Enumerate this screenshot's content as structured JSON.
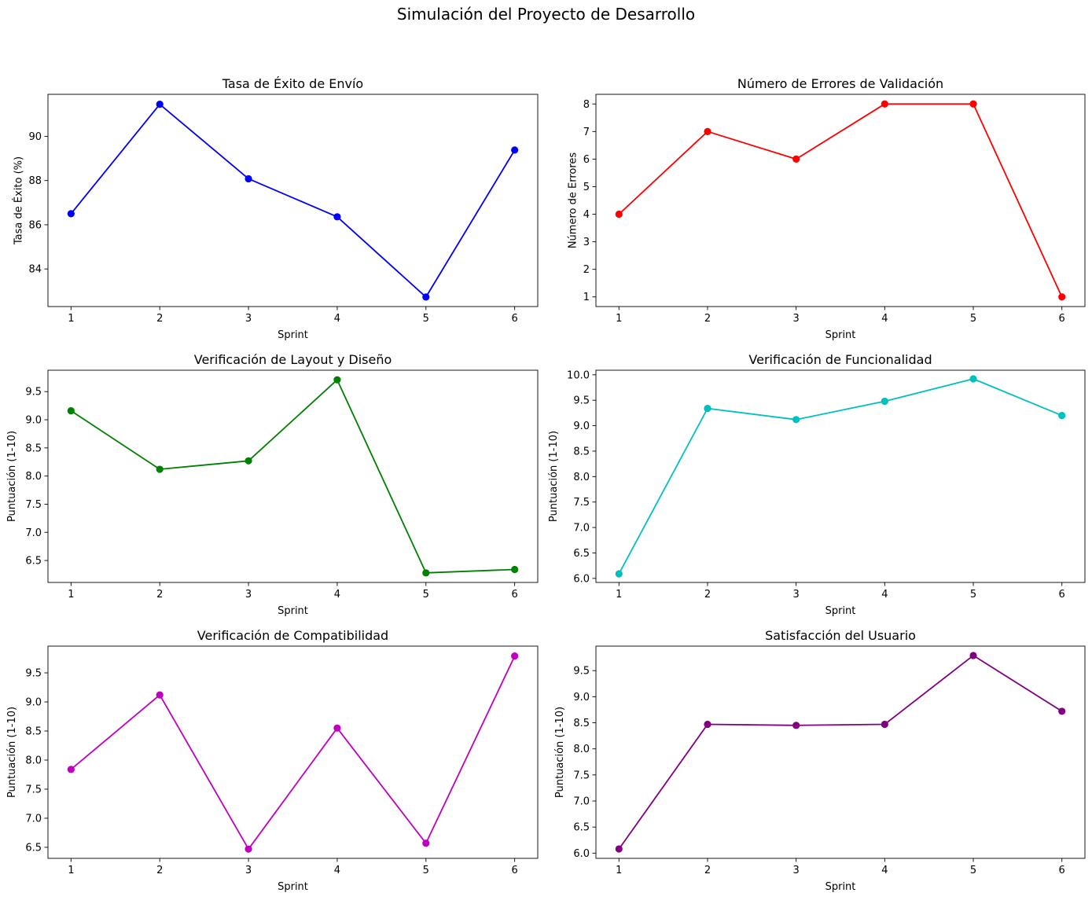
{
  "figure_title": "Simulación del Proyecto de Desarrollo",
  "chart_data": [
    {
      "type": "line",
      "title": "Tasa de Éxito de Envío",
      "xlabel": "Sprint",
      "ylabel": "Tasa de Éxito (%)",
      "x": [
        1,
        2,
        3,
        4,
        5,
        6
      ],
      "values": [
        86.5,
        91.45,
        88.08,
        86.36,
        82.73,
        89.38
      ],
      "color": "#0000ff",
      "xlim": [
        0.74,
        6.26
      ],
      "ylim": [
        82.3,
        91.9
      ],
      "yticks": [
        84,
        86,
        88,
        90
      ],
      "ytick_labels": [
        "84",
        "86",
        "88",
        "90"
      ],
      "xticks": [
        1,
        2,
        3,
        4,
        5,
        6
      ],
      "xtick_labels": [
        "1",
        "2",
        "3",
        "4",
        "5",
        "6"
      ],
      "grid": false,
      "marker": "circle"
    },
    {
      "type": "line",
      "title": "Número de Errores de Validación",
      "xlabel": "Sprint",
      "ylabel": "Número de Errores",
      "x": [
        1,
        2,
        3,
        4,
        5,
        6
      ],
      "values": [
        4,
        7,
        6,
        8,
        8,
        1
      ],
      "color": "#ff0000",
      "xlim": [
        0.74,
        6.26
      ],
      "ylim": [
        0.65,
        8.35
      ],
      "yticks": [
        1,
        2,
        3,
        4,
        5,
        6,
        7,
        8
      ],
      "ytick_labels": [
        "1",
        "2",
        "3",
        "4",
        "5",
        "6",
        "7",
        "8"
      ],
      "xticks": [
        1,
        2,
        3,
        4,
        5,
        6
      ],
      "xtick_labels": [
        "1",
        "2",
        "3",
        "4",
        "5",
        "6"
      ],
      "grid": false,
      "marker": "circle"
    },
    {
      "type": "line",
      "title": "Verificación de Layout y Diseño",
      "xlabel": "Sprint",
      "ylabel": "Puntuación (1-10)",
      "x": [
        1,
        2,
        3,
        4,
        5,
        6
      ],
      "values": [
        9.16,
        8.12,
        8.27,
        9.71,
        6.28,
        6.34
      ],
      "color": "#008000",
      "xlim": [
        0.74,
        6.26
      ],
      "ylim": [
        6.11,
        9.88
      ],
      "yticks": [
        6.5,
        7.0,
        7.5,
        8.0,
        8.5,
        9.0,
        9.5
      ],
      "ytick_labels": [
        "6.5",
        "7.0",
        "7.5",
        "8.0",
        "8.5",
        "9.0",
        "9.5"
      ],
      "xticks": [
        1,
        2,
        3,
        4,
        5,
        6
      ],
      "xtick_labels": [
        "1",
        "2",
        "3",
        "4",
        "5",
        "6"
      ],
      "grid": false,
      "marker": "circle"
    },
    {
      "type": "line",
      "title": "Verificación de Funcionalidad",
      "xlabel": "Sprint",
      "ylabel": "Puntuación (1-10)",
      "x": [
        1,
        2,
        3,
        4,
        5,
        6
      ],
      "values": [
        6.09,
        9.34,
        9.12,
        9.48,
        9.92,
        9.2
      ],
      "color": "#00bfbf",
      "xlim": [
        0.74,
        6.26
      ],
      "ylim": [
        5.92,
        10.09
      ],
      "yticks": [
        6.0,
        6.5,
        7.0,
        7.5,
        8.0,
        8.5,
        9.0,
        9.5,
        10.0
      ],
      "ytick_labels": [
        "6.0",
        "6.5",
        "7.0",
        "7.5",
        "8.0",
        "8.5",
        "9.0",
        "9.5",
        "10.0"
      ],
      "xticks": [
        1,
        2,
        3,
        4,
        5,
        6
      ],
      "xtick_labels": [
        "1",
        "2",
        "3",
        "4",
        "5",
        "6"
      ],
      "grid": false,
      "marker": "circle"
    },
    {
      "type": "line",
      "title": "Verificación de Compatibilidad",
      "xlabel": "Sprint",
      "ylabel": "Puntuación (1-10)",
      "x": [
        1,
        2,
        3,
        4,
        5,
        6
      ],
      "values": [
        7.84,
        9.12,
        6.47,
        8.55,
        6.57,
        9.79
      ],
      "color": "#bf00bf",
      "xlim": [
        0.74,
        6.26
      ],
      "ylim": [
        6.31,
        9.96
      ],
      "yticks": [
        6.5,
        7.0,
        7.5,
        8.0,
        8.5,
        9.0,
        9.5
      ],
      "ytick_labels": [
        "6.5",
        "7.0",
        "7.5",
        "8.0",
        "8.5",
        "9.0",
        "9.5"
      ],
      "xticks": [
        1,
        2,
        3,
        4,
        5,
        6
      ],
      "xtick_labels": [
        "1",
        "2",
        "3",
        "4",
        "5",
        "6"
      ],
      "grid": false,
      "marker": "circle"
    },
    {
      "type": "line",
      "title": "Satisfacción del Usuario",
      "xlabel": "Sprint",
      "ylabel": "Puntuación (1-10)",
      "x": [
        1,
        2,
        3,
        4,
        5,
        6
      ],
      "values": [
        6.08,
        8.47,
        8.45,
        8.47,
        9.79,
        8.72
      ],
      "color": "#800080",
      "xlim": [
        0.74,
        6.26
      ],
      "ylim": [
        5.9,
        9.97
      ],
      "yticks": [
        6.0,
        6.5,
        7.0,
        7.5,
        8.0,
        8.5,
        9.0,
        9.5
      ],
      "ytick_labels": [
        "6.0",
        "6.5",
        "7.0",
        "7.5",
        "8.0",
        "8.5",
        "9.0",
        "9.5"
      ],
      "xticks": [
        1,
        2,
        3,
        4,
        5,
        6
      ],
      "xtick_labels": [
        "1",
        "2",
        "3",
        "4",
        "5",
        "6"
      ],
      "grid": false,
      "marker": "circle"
    }
  ]
}
